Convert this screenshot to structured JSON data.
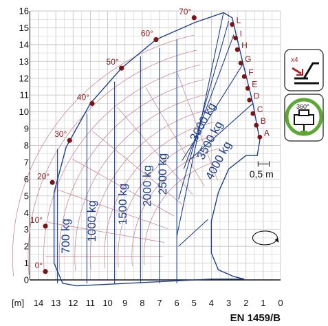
{
  "chart_data": {
    "type": "line",
    "title": "",
    "xlabel": "[m]",
    "ylabel": "",
    "standard": "EN 1459/B",
    "x_range": [
      0,
      14
    ],
    "y_range": [
      0,
      16
    ],
    "x_ticks": [
      "14",
      "13",
      "12",
      "11",
      "10",
      "9",
      "8",
      "7",
      "6",
      "5",
      "4",
      "3",
      "2",
      "1",
      "0"
    ],
    "y_ticks": [
      "0",
      "1",
      "2",
      "3",
      "4",
      "5",
      "6",
      "7",
      "8",
      "9",
      "10",
      "11",
      "12",
      "13",
      "14",
      "15",
      "16"
    ],
    "grid": true,
    "boom_angles": [
      {
        "label": "0°",
        "x": 13.6,
        "y": 0.5
      },
      {
        "label": "10°",
        "x": 13.6,
        "y": 3.2
      },
      {
        "label": "20°",
        "x": 13.2,
        "y": 5.8
      },
      {
        "label": "30°",
        "x": 12.2,
        "y": 8.3
      },
      {
        "label": "40°",
        "x": 10.9,
        "y": 10.5
      },
      {
        "label": "50°",
        "x": 9.2,
        "y": 12.6
      },
      {
        "label": "60°",
        "x": 7.2,
        "y": 14.3
      },
      {
        "label": "70°",
        "x": 5.0,
        "y": 15.6
      }
    ],
    "extension_levels": [
      {
        "label": "A",
        "x": 1.2,
        "y": 8.5
      },
      {
        "label": "B",
        "x": 1.4,
        "y": 9.2
      },
      {
        "label": "C",
        "x": 1.6,
        "y": 9.9
      },
      {
        "label": "D",
        "x": 1.8,
        "y": 10.7
      },
      {
        "label": "E",
        "x": 1.9,
        "y": 11.4
      },
      {
        "label": "F",
        "x": 2.1,
        "y": 12.1
      },
      {
        "label": "G",
        "x": 2.3,
        "y": 12.9
      },
      {
        "label": "H",
        "x": 2.5,
        "y": 13.7
      },
      {
        "label": "I",
        "x": 2.6,
        "y": 14.4
      },
      {
        "label": "L",
        "x": 2.8,
        "y": 15.2
      }
    ],
    "load_curves": [
      "700 kg",
      "1000 kg",
      "1500 kg",
      "2000 kg",
      "2500 kg",
      "3000 kg",
      "3500 kg",
      "4000 kg"
    ],
    "dimension_label": "0,5 m"
  },
  "icons": {
    "top": {
      "name": "outrigger-icon",
      "label": "x4"
    },
    "bottom": {
      "name": "rotation-360-icon",
      "label": "360°"
    }
  },
  "colors": {
    "envelope": "#1c3f8c",
    "arc": "#c88a95",
    "marker": "#7a1416",
    "grid": "#c8c8c8",
    "badge_green": "#5ca832"
  }
}
